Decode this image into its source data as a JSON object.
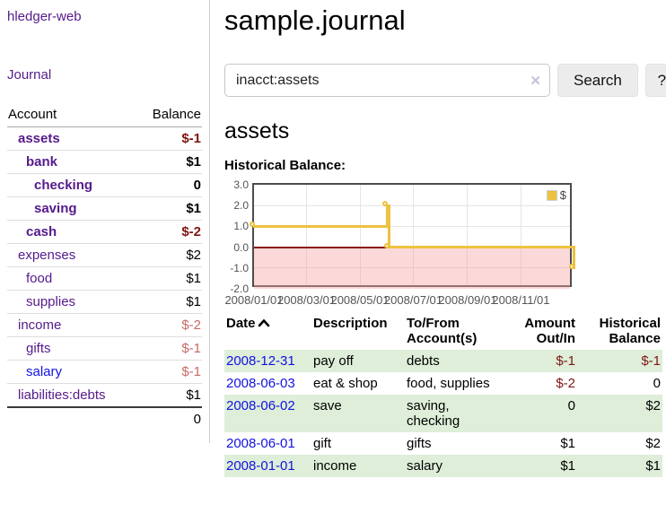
{
  "colors": {
    "link_purple": "#551a8b",
    "link_blue": "#1212e0",
    "negative_dark": "#7f1511",
    "negative_light": "#c66b66",
    "row_stripe_green": "#deeed9",
    "chart_series_gold": "#edc240",
    "chart_negative_fill": "#fcdede",
    "chart_zero_line": "#8b1a1a"
  },
  "sidebar": {
    "app_title": "hledger-web",
    "nav": {
      "journal": "Journal"
    },
    "accounts": {
      "col_account": "Account",
      "col_balance": "Balance",
      "rows": [
        {
          "name": "assets",
          "balance": "$-1",
          "level": 1,
          "bold": true,
          "negative": "dark"
        },
        {
          "name": "bank",
          "balance": "$1",
          "level": 2,
          "bold": true,
          "negative": null
        },
        {
          "name": "checking",
          "balance": "0",
          "level": 3,
          "bold": true,
          "negative": null
        },
        {
          "name": "saving",
          "balance": "$1",
          "level": 3,
          "bold": true,
          "negative": null
        },
        {
          "name": "cash",
          "balance": "$-2",
          "level": 2,
          "bold": true,
          "negative": "dark"
        },
        {
          "name": "expenses",
          "balance": "$2",
          "level": 1,
          "bold": false,
          "negative": null
        },
        {
          "name": "food",
          "balance": "$1",
          "level": 2,
          "bold": false,
          "negative": null
        },
        {
          "name": "supplies",
          "balance": "$1",
          "level": 2,
          "bold": false,
          "negative": null
        },
        {
          "name": "income",
          "balance": "$-2",
          "level": 1,
          "bold": false,
          "negative": "light"
        },
        {
          "name": "gifts",
          "balance": "$-1",
          "level": 2,
          "bold": false,
          "negative": "light"
        },
        {
          "name": "salary",
          "balance": "$-1",
          "level": 2,
          "bold": false,
          "negative": "light"
        },
        {
          "name": "liabilities:debts",
          "balance": "$1",
          "level": 1,
          "bold": false,
          "negative": null
        }
      ],
      "total": "0"
    }
  },
  "main": {
    "title": "sample.journal",
    "search": {
      "value": "inacct:assets",
      "clear_icon": "✕",
      "button": "Search",
      "help_button": "?"
    },
    "account_heading": "assets",
    "chart_label": "Historical Balance:",
    "register": {
      "sort": "ascending",
      "headers": {
        "date": "Date",
        "description": "Description",
        "tofrom": "To/From Account(s)",
        "amount": "Amount Out/In",
        "historical": "Historical Balance"
      },
      "rows": [
        {
          "date": "2008-12-31",
          "description": "pay off",
          "accounts": "debts",
          "amount": "$-1",
          "historical": "$-1"
        },
        {
          "date": "2008-06-03",
          "description": "eat & shop",
          "accounts": "food, supplies",
          "amount": "$-2",
          "historical": "0"
        },
        {
          "date": "2008-06-02",
          "description": "save",
          "accounts": "saving, checking",
          "amount": "0",
          "historical": "$2"
        },
        {
          "date": "2008-06-01",
          "description": "gift",
          "accounts": "gifts",
          "amount": "$1",
          "historical": "$2"
        },
        {
          "date": "2008-01-01",
          "description": "income",
          "accounts": "salary",
          "amount": "$1",
          "historical": "$1"
        }
      ]
    }
  },
  "chart_data": {
    "type": "line",
    "step": true,
    "title": "Historical Balance:",
    "series": [
      {
        "name": "$",
        "color": "#edc240",
        "points": [
          {
            "date": "2008-01-01",
            "day": 0,
            "value": 1
          },
          {
            "date": "2008-06-01",
            "day": 152,
            "value": 2
          },
          {
            "date": "2008-06-03",
            "day": 154,
            "value": 0
          },
          {
            "date": "2008-12-31",
            "day": 365,
            "value": -1
          }
        ]
      }
    ],
    "x_ticks": [
      {
        "label": "2008/01/01",
        "day": 0
      },
      {
        "label": "2008/03/01",
        "day": 60
      },
      {
        "label": "2008/05/01",
        "day": 121
      },
      {
        "label": "2008/07/01",
        "day": 182
      },
      {
        "label": "2008/09/01",
        "day": 244
      },
      {
        "label": "2008/11/01",
        "day": 305
      }
    ],
    "y_ticks": [
      "3.0",
      "2.0",
      "1.0",
      "0.0",
      "-1.0",
      "-2.0"
    ],
    "ylim": [
      -2,
      3
    ],
    "xlim_days": [
      0,
      365
    ],
    "grid": true,
    "negative_fill": true,
    "legend": {
      "label": "$",
      "position": "top-right"
    }
  }
}
